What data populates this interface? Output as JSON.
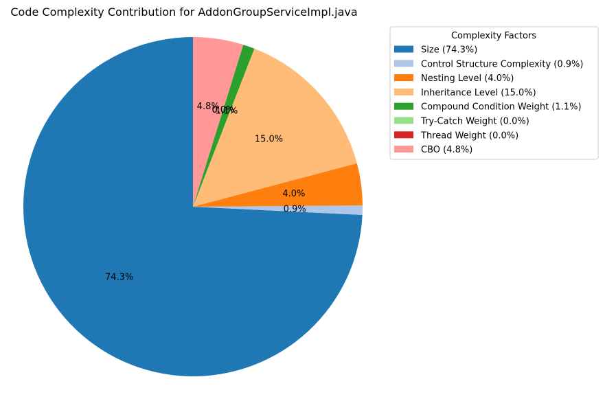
{
  "chart_data": {
    "type": "pie",
    "title": "Code Complexity Contribution for AddonGroupServiceImpl.java",
    "start_angle_deg": 90,
    "direction": "counterclockwise",
    "slices": [
      {
        "name": "Size",
        "value": 74.3,
        "label": "74.3%",
        "color": "#1f77b4"
      },
      {
        "name": "Control Structure Complexity",
        "value": 0.9,
        "label": "0.9%",
        "color": "#aec7e8"
      },
      {
        "name": "Nesting Level",
        "value": 4.0,
        "label": "4.0%",
        "color": "#ff7f0e"
      },
      {
        "name": "Inheritance Level",
        "value": 15.0,
        "label": "15.0%",
        "color": "#ffbb78"
      },
      {
        "name": "Compound Condition Weight",
        "value": 1.1,
        "label": "1.1%",
        "color": "#2ca02c"
      },
      {
        "name": "Try-Catch Weight",
        "value": 0.0,
        "label": "0.0%",
        "color": "#98df8a"
      },
      {
        "name": "Thread Weight",
        "value": 0.0,
        "label": "0.0%",
        "color": "#d62728"
      },
      {
        "name": "CBO",
        "value": 4.8,
        "label": "4.8%",
        "color": "#ff9896"
      }
    ],
    "legend": {
      "title": "Complexity Factors",
      "placement": "upper-right outside",
      "entries": [
        "Size (74.3%)",
        "Control Structure Complexity (0.9%)",
        "Nesting Level (4.0%)",
        "Inheritance Level (15.0%)",
        "Compound Condition Weight (1.1%)",
        "Try-Catch Weight (0.0%)",
        "Thread Weight (0.0%)",
        "CBO (4.8%)"
      ]
    }
  }
}
